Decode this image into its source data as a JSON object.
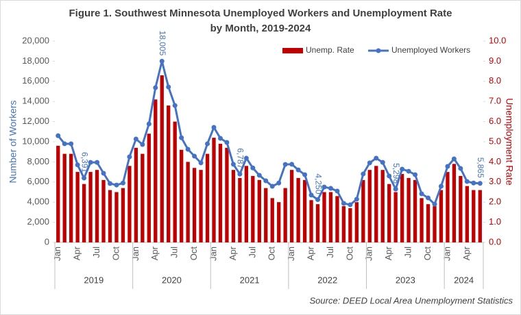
{
  "chart_data": {
    "type": "combo",
    "title": [
      "Figure 1. Southwest Minnesota Unemployed Workers and Unemployment Rate",
      "by Month, 2019-2024"
    ],
    "y_label": "Number of Workers",
    "y2_label": "Unemployment Rate",
    "source": "Source: DEED Local Area Unemployment Statistics",
    "legend": "top-right",
    "categories": [
      "Jan",
      null,
      null,
      "Apr",
      null,
      null,
      "Jul",
      null,
      null,
      "Oct",
      null,
      null,
      "Jan",
      null,
      null,
      "Apr",
      null,
      null,
      "Jul",
      null,
      null,
      "Oct",
      null,
      null,
      "Jan",
      null,
      null,
      "Apr",
      null,
      null,
      "Jul",
      null,
      null,
      "Oct",
      null,
      null,
      "Jan",
      null,
      null,
      "Apr",
      null,
      null,
      "Jul",
      null,
      null,
      "Oct",
      null,
      null,
      "Jan",
      null,
      null,
      "Apr",
      null,
      null,
      "Jul",
      null,
      null,
      "Oct",
      null,
      null,
      "Jan",
      null,
      null,
      "Apr",
      null,
      null
    ],
    "years": [
      "2019",
      "2020",
      "2021",
      "2022",
      "2023",
      "2024"
    ],
    "series": [
      {
        "name": "Unemp. Rate",
        "type": "bar",
        "axis": "y2",
        "color": "#c00000",
        "values": [
          4.8,
          4.4,
          4.4,
          3.5,
          2.9,
          3.5,
          3.6,
          3.1,
          2.6,
          2.5,
          2.7,
          3.8,
          4.7,
          4.4,
          5.4,
          7.1,
          8.3,
          6.8,
          6.0,
          4.6,
          4.0,
          3.7,
          3.6,
          4.4,
          5.2,
          4.9,
          4.7,
          3.6,
          3.2,
          3.8,
          3.3,
          3.1,
          2.7,
          2.2,
          2.0,
          2.7,
          3.6,
          3.2,
          3.1,
          2.1,
          1.9,
          2.5,
          2.5,
          2.3,
          1.8,
          1.7,
          2.0,
          3.1,
          3.6,
          3.8,
          3.6,
          2.9,
          2.5,
          3.4,
          3.2,
          3.1,
          2.2,
          1.9,
          1.8,
          2.6,
          3.5,
          3.9,
          3.3,
          2.8,
          2.6,
          2.6
        ]
      },
      {
        "name": "Unemployed Workers",
        "type": "line",
        "color": "#4472c4",
        "values": [
          10600,
          9800,
          9800,
          7700,
          6391,
          7950,
          7950,
          6870,
          5850,
          5700,
          5900,
          8500,
          10270,
          9730,
          11770,
          15370,
          18005,
          15440,
          13600,
          10400,
          9250,
          8570,
          7900,
          9800,
          11430,
          10340,
          9930,
          7760,
          6787,
          8370,
          7400,
          6670,
          6120,
          5580,
          5900,
          7750,
          7760,
          7200,
          6730,
          4700,
          4250,
          5500,
          5370,
          5100,
          3880,
          3740,
          4290,
          6800,
          7900,
          8370,
          7950,
          6600,
          5298,
          7280,
          7070,
          6730,
          4830,
          4420,
          3800,
          5580,
          7550,
          8300,
          7350,
          6050,
          5900,
          5865
        ],
        "value_labels": [
          null,
          null,
          null,
          null,
          "6,391",
          null,
          null,
          null,
          null,
          null,
          null,
          null,
          null,
          null,
          null,
          null,
          "18,005",
          null,
          null,
          null,
          null,
          null,
          null,
          null,
          null,
          null,
          null,
          null,
          "6,787",
          null,
          null,
          null,
          null,
          null,
          null,
          null,
          null,
          null,
          null,
          null,
          "4,250",
          null,
          null,
          null,
          null,
          null,
          null,
          null,
          null,
          null,
          null,
          null,
          "5,298",
          null,
          null,
          null,
          null,
          null,
          null,
          null,
          null,
          null,
          null,
          null,
          null,
          "5,865"
        ]
      }
    ],
    "ylim": [
      0,
      20000
    ],
    "yticks": [
      0,
      {
        "value": 2000,
        "label": "2,000"
      },
      {
        "value": 4000,
        "label": "4,000"
      },
      {
        "value": 6000,
        "label": "6,000"
      },
      {
        "value": 8000,
        "label": "8,000"
      },
      {
        "value": 10000,
        "label": "10,000"
      },
      {
        "value": 12000,
        "label": "12,000"
      },
      {
        "value": 14000,
        "label": "14,000"
      },
      {
        "value": 16000,
        "label": "16,000"
      },
      {
        "value": 18000,
        "label": "18,000"
      },
      {
        "value": 20000,
        "label": "20,000"
      }
    ],
    "y2lim": [
      0,
      10
    ],
    "y2ticks": [
      {
        "value": 0,
        "label": "0.0"
      },
      {
        "value": 1,
        "label": "1.0"
      },
      {
        "value": 2,
        "label": "2.0"
      },
      {
        "value": 3,
        "label": "3.0"
      },
      {
        "value": 4,
        "label": "4.0"
      },
      {
        "value": 5,
        "label": "5.0"
      },
      {
        "value": 6,
        "label": "6.0"
      },
      {
        "value": 7,
        "label": "7.0"
      },
      {
        "value": 8,
        "label": "8.0"
      },
      {
        "value": 9,
        "label": "9.0"
      },
      {
        "value": 10,
        "label": "10.0"
      }
    ]
  }
}
